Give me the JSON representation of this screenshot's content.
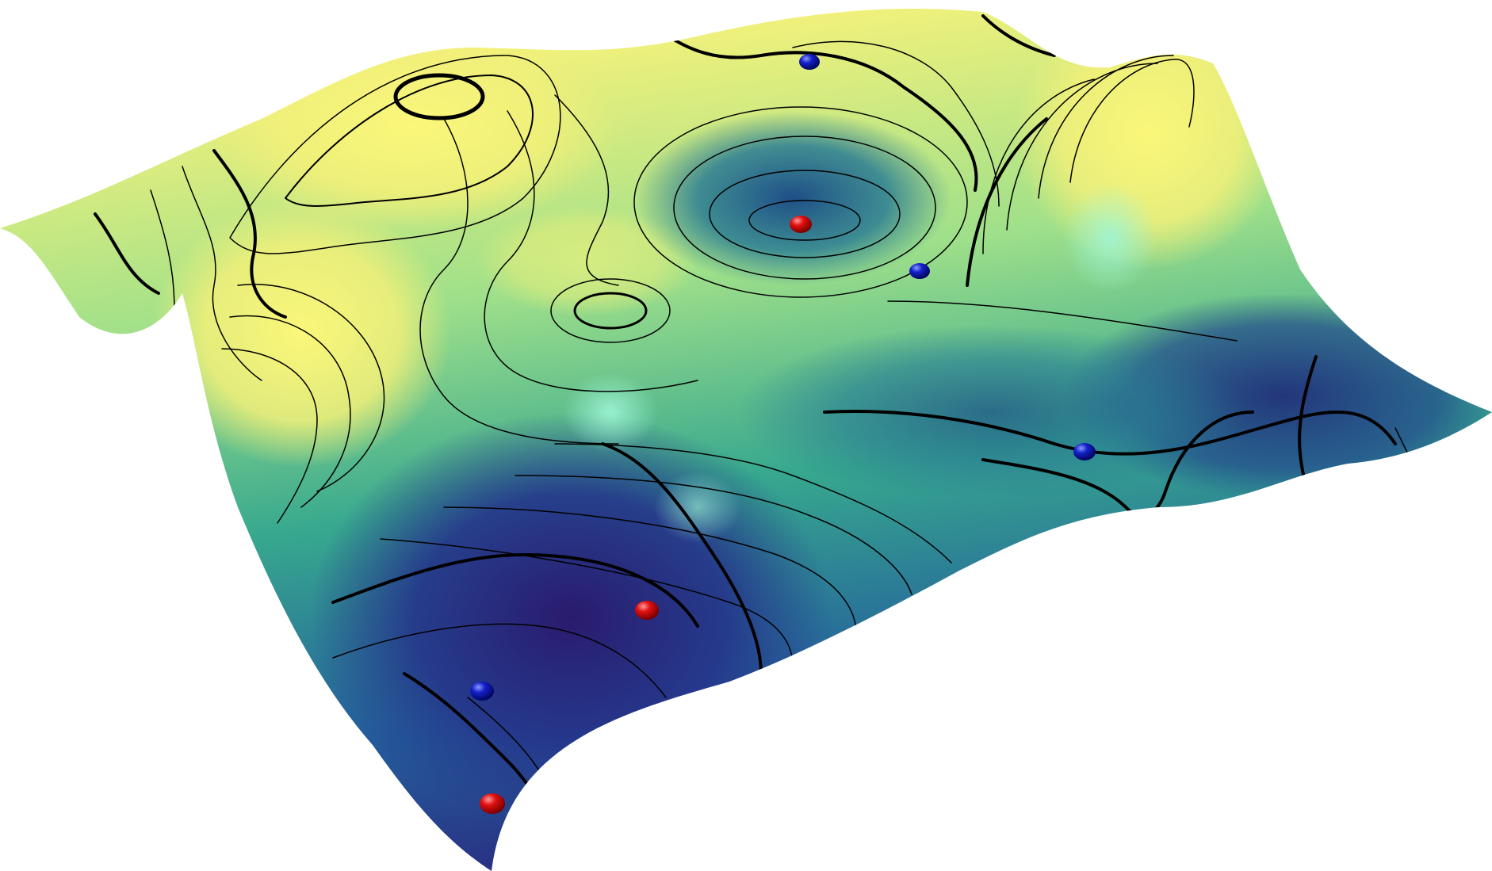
{
  "scene": {
    "subject": "landscape-surface",
    "colormap": [
      "#2a1f7a",
      "#22599a",
      "#2aa08f",
      "#5fd0a0",
      "#bde67e",
      "#f8f578"
    ],
    "contour_color": "#000000",
    "minima_marker_color": "#e01010",
    "saddle_marker_color": "#1420c8",
    "minima_count": 3,
    "saddle_count": 4
  }
}
